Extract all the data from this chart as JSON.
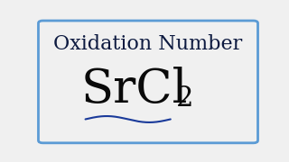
{
  "title": "Oxidation Number",
  "formula_main": "SrCl",
  "formula_subscript": "2",
  "background_color": "#f0f0f0",
  "border_color": "#5b9bd5",
  "title_color": "#0d1a40",
  "formula_color": "#0a0a0a",
  "wavy_color": "#1a3a9a",
  "title_fontsize": 16,
  "formula_fontsize": 38,
  "subscript_fontsize": 22,
  "border_linewidth": 2.0,
  "figsize": [
    3.2,
    1.8
  ],
  "dpi": 100
}
